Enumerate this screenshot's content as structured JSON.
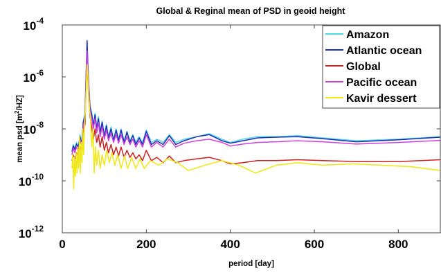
{
  "chart_data": {
    "type": "line",
    "title": "Global & Reginal mean  of PSD in geoid height",
    "xlabel": "period [day]",
    "ylabel": "mean psd [m²/HZ]",
    "ylabel_base": "mean psd [m",
    "ylabel_sup": "2",
    "ylabel_tail": "/HZ]",
    "xlim": [
      0,
      900
    ],
    "ylim": [
      1e-12,
      0.0001
    ],
    "yscale": "log",
    "grid": false,
    "legend_position": "top-right",
    "xticks": [
      0,
      200,
      400,
      600,
      800
    ],
    "xtick_labels": [
      "0",
      "200",
      "400",
      "600",
      "800"
    ],
    "yticks_exp": [
      -12,
      -10,
      -8,
      -6,
      -4
    ],
    "ytick_base": "10",
    "ytick_exp_labels": [
      "-12",
      "-10",
      "-8",
      "-6",
      "-4"
    ],
    "series": [
      {
        "name": "Amazon",
        "color": "#4fd6e6",
        "x": [
          23,
          26,
          30,
          34,
          38,
          42,
          46,
          50,
          54,
          57,
          59,
          61,
          63,
          66,
          70,
          74,
          78,
          82,
          86,
          90,
          95,
          100,
          105,
          110,
          116,
          122,
          128,
          134,
          140,
          147,
          154,
          161,
          168,
          175,
          183,
          191,
          200,
          212,
          225,
          240,
          255,
          270,
          290,
          320,
          350,
          380,
          400,
          430,
          465,
          510,
          560,
          620,
          700,
          800,
          900
        ],
        "y": [
          1.5e-09,
          2.5e-09,
          1.8e-09,
          3e-09,
          2e-09,
          6e-09,
          3e-09,
          2e-08,
          4e-08,
          2e-06,
          2.2e-05,
          3e-06,
          6e-07,
          8e-08,
          4e-08,
          1.5e-08,
          4e-08,
          1.2e-08,
          3e-08,
          8e-09,
          2e-08,
          6e-09,
          1.5e-08,
          5e-09,
          1.2e-08,
          4e-09,
          1e-08,
          4e-09,
          1e-08,
          3.5e-09,
          8e-09,
          3.5e-09,
          6e-09,
          3e-09,
          5e-09,
          3e-09,
          9e-09,
          3e-09,
          4e-09,
          3e-09,
          6e-09,
          3e-09,
          4e-09,
          5e-09,
          6.5e-09,
          4e-09,
          3e-09,
          4e-09,
          5e-09,
          5e-09,
          5.5e-09,
          4.5e-09,
          3.5e-09,
          4e-09,
          5e-09
        ]
      },
      {
        "name": "Atlantic ocean",
        "color": "#1f2bb0",
        "x": [
          23,
          26,
          30,
          34,
          38,
          42,
          46,
          50,
          54,
          57,
          59,
          61,
          63,
          66,
          70,
          74,
          78,
          82,
          86,
          90,
          95,
          100,
          105,
          110,
          116,
          122,
          128,
          134,
          140,
          147,
          154,
          161,
          168,
          175,
          183,
          191,
          200,
          212,
          225,
          240,
          255,
          270,
          290,
          320,
          350,
          380,
          400,
          430,
          465,
          510,
          560,
          620,
          700,
          800,
          900
        ],
        "y": [
          1.3e-09,
          2.2e-09,
          1.6e-09,
          2.6e-09,
          1.8e-09,
          5e-09,
          2.5e-09,
          1.8e-08,
          3.5e-08,
          1.8e-06,
          2.5e-05,
          2.6e-06,
          5e-07,
          7e-08,
          3.5e-08,
          1.3e-08,
          3.5e-08,
          1e-08,
          2.5e-08,
          7e-09,
          1.8e-08,
          5e-09,
          1.3e-08,
          4.5e-09,
          1e-08,
          3.5e-09,
          9e-09,
          3.5e-09,
          9e-09,
          3e-09,
          7.5e-09,
          3e-09,
          5.5e-09,
          2.5e-09,
          4.5e-09,
          2.5e-09,
          8e-09,
          2.5e-09,
          3.5e-09,
          2.5e-09,
          5.5e-09,
          2.5e-09,
          3.5e-09,
          5e-09,
          6e-09,
          3.5e-09,
          2.8e-09,
          3.5e-09,
          4.5e-09,
          4.8e-09,
          5e-09,
          4.2e-09,
          3.2e-09,
          3.8e-09,
          4.8e-09
        ]
      },
      {
        "name": "Global",
        "color": "#cc2020",
        "x": [
          23,
          26,
          30,
          34,
          38,
          42,
          46,
          50,
          54,
          57,
          59,
          61,
          63,
          66,
          70,
          74,
          78,
          82,
          86,
          90,
          95,
          100,
          105,
          110,
          116,
          122,
          128,
          134,
          140,
          147,
          154,
          161,
          168,
          175,
          183,
          191,
          200,
          212,
          225,
          240,
          255,
          270,
          290,
          320,
          350,
          380,
          400,
          430,
          465,
          510,
          560,
          620,
          700,
          800,
          900
        ],
        "y": [
          6e-10,
          1e-09,
          7e-10,
          1.2e-09,
          8e-10,
          2e-09,
          1e-09,
          8e-09,
          1.5e-08,
          6e-07,
          5e-06,
          8e-07,
          1.5e-07,
          3e-08,
          1.2e-08,
          4e-09,
          1e-08,
          3e-09,
          6e-09,
          2e-09,
          5e-09,
          1.5e-09,
          3e-09,
          1.2e-09,
          2.5e-09,
          1e-09,
          2e-09,
          9e-10,
          2e-09,
          8e-10,
          1.5e-09,
          8e-10,
          1.2e-09,
          7e-10,
          1e-09,
          6e-10,
          1.5e-09,
          6e-10,
          8e-10,
          5e-10,
          9e-10,
          5e-10,
          6e-10,
          7e-10,
          8e-10,
          6e-10,
          4.5e-10,
          5e-10,
          6e-10,
          6e-10,
          6.5e-10,
          6e-10,
          5.5e-10,
          5.5e-10,
          6.5e-10
        ]
      },
      {
        "name": "Pacific ocean",
        "color": "#d040e0",
        "x": [
          23,
          26,
          30,
          34,
          38,
          42,
          46,
          50,
          54,
          57,
          59,
          61,
          63,
          66,
          70,
          74,
          78,
          82,
          86,
          90,
          95,
          100,
          105,
          110,
          116,
          122,
          128,
          134,
          140,
          147,
          154,
          161,
          168,
          175,
          183,
          191,
          200,
          212,
          225,
          240,
          255,
          270,
          290,
          320,
          350,
          380,
          400,
          430,
          465,
          510,
          560,
          620,
          700,
          800,
          900
        ],
        "y": [
          1e-09,
          1.8e-09,
          1.2e-09,
          2e-09,
          1.4e-09,
          4e-09,
          2e-09,
          1.3e-08,
          2.5e-08,
          1.2e-06,
          1e-05,
          2e-06,
          4e-07,
          5e-08,
          2.5e-08,
          1e-08,
          2.5e-08,
          7e-09,
          1.8e-08,
          5e-09,
          1.2e-08,
          4e-09,
          9e-09,
          3.5e-09,
          7e-09,
          3e-09,
          6e-09,
          2.8e-09,
          6e-09,
          2.5e-09,
          5e-09,
          2.5e-09,
          4e-09,
          2e-09,
          3.5e-09,
          2e-09,
          6e-09,
          2e-09,
          3e-09,
          2e-09,
          4e-09,
          2e-09,
          2.8e-09,
          3.5e-09,
          4e-09,
          3e-09,
          2.2e-09,
          2.6e-09,
          3e-09,
          3.2e-09,
          3.5e-09,
          3.2e-09,
          2.6e-09,
          3e-09,
          3.6e-09
        ]
      },
      {
        "name": "Kavir dessert",
        "color": "#f0e81e",
        "x": [
          23,
          25,
          27,
          29,
          31,
          33,
          35,
          37,
          39,
          41,
          43,
          45,
          47,
          49,
          51,
          53,
          55,
          57,
          59,
          61,
          63,
          65,
          67,
          70,
          73,
          76,
          79,
          82,
          86,
          90,
          95,
          100,
          106,
          112,
          118,
          125,
          132,
          140,
          148,
          156,
          165,
          175,
          185,
          195,
          210,
          230,
          250,
          275,
          300,
          340,
          380,
          420,
          460,
          510,
          560,
          620,
          690,
          760,
          830,
          900
        ],
        "y": [
          3e-10,
          1e-09,
          5e-11,
          8e-10,
          1.5e-10,
          1.2e-09,
          2e-10,
          2e-09,
          3e-10,
          5e-09,
          2e-10,
          3e-09,
          5e-10,
          1e-08,
          1e-09,
          2e-08,
          5e-08,
          4e-07,
          3e-06,
          1e-06,
          2e-07,
          5e-08,
          3e-08,
          2e-09,
          1e-08,
          2e-10,
          2e-09,
          4e-10,
          1.5e-09,
          3e-10,
          1e-09,
          4e-10,
          1.5e-09,
          5e-10,
          1.2e-09,
          4e-10,
          1e-09,
          3e-10,
          9e-10,
          3e-10,
          8e-10,
          3e-10,
          7e-10,
          3e-10,
          6e-10,
          4e-10,
          7e-10,
          5e-10,
          2.5e-10,
          4e-10,
          6e-10,
          4e-10,
          2e-10,
          4e-10,
          5e-10,
          4e-10,
          4.5e-10,
          4e-10,
          3.5e-10,
          2.5e-10
        ]
      }
    ]
  }
}
